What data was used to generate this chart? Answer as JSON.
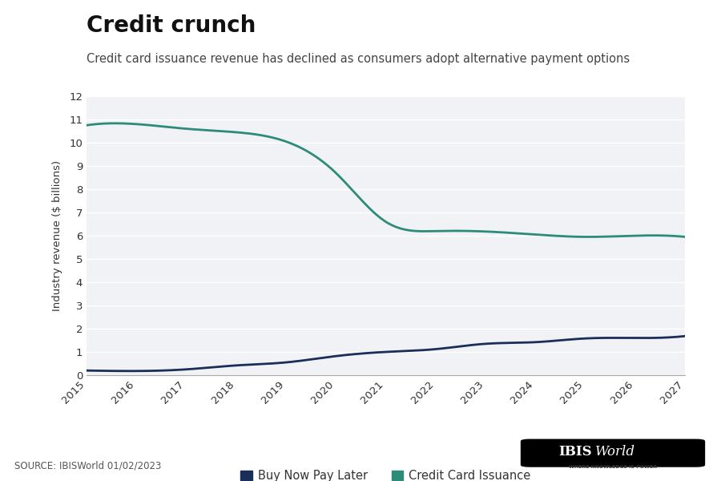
{
  "title": "Credit crunch",
  "subtitle": "Credit card issuance revenue has declined as consumers adopt alternative payment options",
  "ylabel": "Industry revenue ($ billions)",
  "source": "SOURCE: IBISWorld 01/02/2023",
  "years": [
    2015,
    2016,
    2017,
    2018,
    2019,
    2020,
    2021,
    2022,
    2023,
    2024,
    2025,
    2026,
    2027
  ],
  "bnpl": [
    0.2,
    0.18,
    0.25,
    0.42,
    0.55,
    0.82,
    1.0,
    1.12,
    1.35,
    1.42,
    1.58,
    1.6,
    1.68
  ],
  "credit_card": [
    10.75,
    10.8,
    10.6,
    10.45,
    10.05,
    8.7,
    6.6,
    6.2,
    6.18,
    6.05,
    5.95,
    6.0,
    5.95
  ],
  "bnpl_color": "#1a2e5a",
  "credit_card_color": "#2d8b7a",
  "figure_bg_color": "#ffffff",
  "plot_bg_color": "#f0f2f5",
  "grid_color": "#ffffff",
  "ylim": [
    0,
    12
  ],
  "yticks": [
    0,
    1,
    2,
    3,
    4,
    5,
    6,
    7,
    8,
    9,
    10,
    11,
    12
  ],
  "legend_bnpl": "Buy Now Pay Later",
  "legend_cc": "Credit Card Issuance",
  "title_fontsize": 20,
  "subtitle_fontsize": 10.5,
  "axis_fontsize": 9.5,
  "tick_fontsize": 9.5,
  "line_width": 2.0
}
